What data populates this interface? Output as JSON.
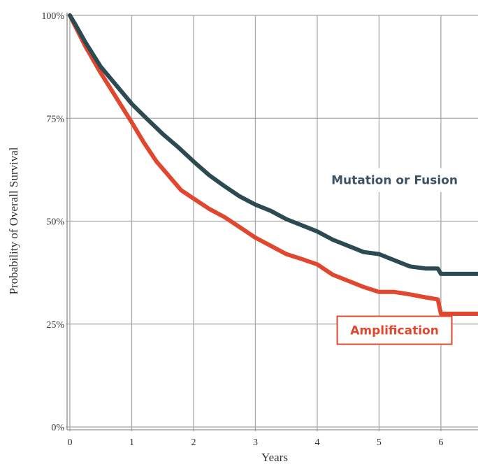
{
  "chart_data": {
    "type": "line",
    "title": "",
    "xlabel": "Years",
    "ylabel": "Probability of Overall Survival",
    "xlim": [
      0,
      6.6
    ],
    "ylim": [
      0,
      1
    ],
    "grid": true,
    "x_ticks": [
      0,
      1,
      2,
      3,
      4,
      5,
      6
    ],
    "x_tick_labels": [
      "0",
      "1",
      "2",
      "3",
      "4",
      "5",
      "6"
    ],
    "y_ticks": [
      0,
      0.25,
      0.5,
      0.75,
      1
    ],
    "y_tick_labels": [
      "0%",
      "25%",
      "50%",
      "75%",
      "100%"
    ],
    "series": [
      {
        "name": "Mutation or Fusion",
        "color": "#2c4a52",
        "label_color": "#3e5266",
        "label_boxed": false,
        "x": [
          0,
          0.1,
          0.25,
          0.5,
          0.75,
          1.0,
          1.25,
          1.5,
          1.75,
          2.0,
          2.25,
          2.5,
          2.75,
          3.0,
          3.25,
          3.5,
          3.75,
          4.0,
          4.25,
          4.5,
          4.75,
          5.0,
          5.25,
          5.5,
          5.75,
          5.95,
          6.0,
          6.3,
          6.6
        ],
        "y": [
          1.0,
          0.975,
          0.935,
          0.875,
          0.83,
          0.785,
          0.748,
          0.712,
          0.68,
          0.645,
          0.612,
          0.585,
          0.56,
          0.54,
          0.525,
          0.505,
          0.49,
          0.475,
          0.455,
          0.44,
          0.425,
          0.42,
          0.405,
          0.39,
          0.385,
          0.385,
          0.372,
          0.372,
          0.372
        ]
      },
      {
        "name": "Amplification",
        "color": "#e0472e",
        "label_color": "#e0472e",
        "label_boxed": true,
        "x": [
          0,
          0.1,
          0.25,
          0.5,
          0.75,
          1.0,
          1.2,
          1.4,
          1.6,
          1.8,
          2.0,
          2.25,
          2.5,
          2.75,
          3.0,
          3.25,
          3.5,
          3.75,
          4.0,
          4.25,
          4.5,
          4.75,
          5.0,
          5.25,
          5.5,
          5.75,
          5.95,
          6.0,
          6.3,
          6.6
        ],
        "y": [
          1.0,
          0.97,
          0.925,
          0.86,
          0.8,
          0.74,
          0.69,
          0.645,
          0.61,
          0.575,
          0.555,
          0.53,
          0.51,
          0.485,
          0.46,
          0.44,
          0.42,
          0.408,
          0.395,
          0.37,
          0.355,
          0.34,
          0.328,
          0.328,
          0.322,
          0.315,
          0.31,
          0.275,
          0.275,
          0.275
        ]
      }
    ],
    "annotations": [
      {
        "text": "Mutation or Fusion",
        "series": 0,
        "x": 5.25,
        "y": 0.6
      },
      {
        "text": "Amplification",
        "series": 1,
        "x": 5.25,
        "y": 0.235
      }
    ]
  }
}
